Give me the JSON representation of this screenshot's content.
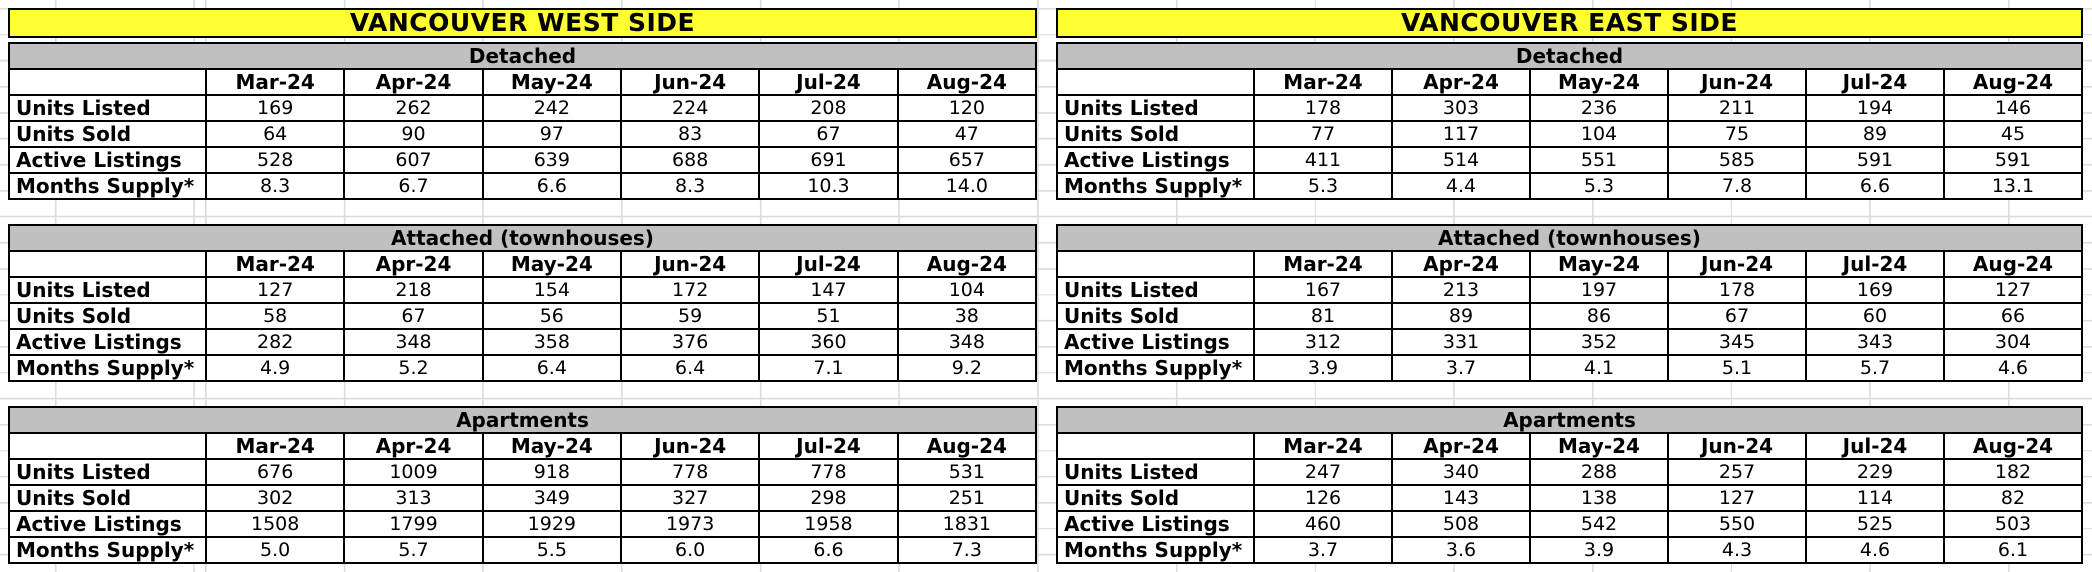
{
  "colors": {
    "title_bg": "#ffff33",
    "subtitle_bg": "#c0c0c0",
    "table_border": "#000000",
    "gridline": "#dcdcdc"
  },
  "chart_data": {
    "type": "table",
    "months": [
      "Mar-24",
      "Apr-24",
      "May-24",
      "Jun-24",
      "Jul-24",
      "Aug-24"
    ],
    "row_labels": [
      "Units Listed",
      "Units Sold",
      "Active Listings",
      "Months Supply*"
    ],
    "groups": [
      {
        "title": "VANCOUVER WEST SIDE",
        "sections": [
          {
            "name": "Detached",
            "values": [
              [
                "169",
                "262",
                "242",
                "224",
                "208",
                "120"
              ],
              [
                "64",
                "90",
                "97",
                "83",
                "67",
                "47"
              ],
              [
                "528",
                "607",
                "639",
                "688",
                "691",
                "657"
              ],
              [
                "8.3",
                "6.7",
                "6.6",
                "8.3",
                "10.3",
                "14.0"
              ]
            ]
          },
          {
            "name": "Attached (townhouses)",
            "values": [
              [
                "127",
                "218",
                "154",
                "172",
                "147",
                "104"
              ],
              [
                "58",
                "67",
                "56",
                "59",
                "51",
                "38"
              ],
              [
                "282",
                "348",
                "358",
                "376",
                "360",
                "348"
              ],
              [
                "4.9",
                "5.2",
                "6.4",
                "6.4",
                "7.1",
                "9.2"
              ]
            ]
          },
          {
            "name": "Apartments",
            "values": [
              [
                "676",
                "1009",
                "918",
                "778",
                "778",
                "531"
              ],
              [
                "302",
                "313",
                "349",
                "327",
                "298",
                "251"
              ],
              [
                "1508",
                "1799",
                "1929",
                "1973",
                "1958",
                "1831"
              ],
              [
                "5.0",
                "5.7",
                "5.5",
                "6.0",
                "6.6",
                "7.3"
              ]
            ]
          }
        ]
      },
      {
        "title": "VANCOUVER EAST SIDE",
        "sections": [
          {
            "name": "Detached",
            "values": [
              [
                "178",
                "303",
                "236",
                "211",
                "194",
                "146"
              ],
              [
                "77",
                "117",
                "104",
                "75",
                "89",
                "45"
              ],
              [
                "411",
                "514",
                "551",
                "585",
                "591",
                "591"
              ],
              [
                "5.3",
                "4.4",
                "5.3",
                "7.8",
                "6.6",
                "13.1"
              ]
            ]
          },
          {
            "name": "Attached (townhouses)",
            "values": [
              [
                "167",
                "213",
                "197",
                "178",
                "169",
                "127"
              ],
              [
                "81",
                "89",
                "86",
                "67",
                "60",
                "66"
              ],
              [
                "312",
                "331",
                "352",
                "345",
                "343",
                "304"
              ],
              [
                "3.9",
                "3.7",
                "4.1",
                "5.1",
                "5.7",
                "4.6"
              ]
            ]
          },
          {
            "name": "Apartments",
            "values": [
              [
                "247",
                "340",
                "288",
                "257",
                "229",
                "182"
              ],
              [
                "126",
                "143",
                "138",
                "127",
                "114",
                "82"
              ],
              [
                "460",
                "508",
                "542",
                "550",
                "525",
                "503"
              ],
              [
                "3.7",
                "3.6",
                "3.9",
                "4.3",
                "4.6",
                "6.1"
              ]
            ]
          }
        ]
      }
    ]
  }
}
